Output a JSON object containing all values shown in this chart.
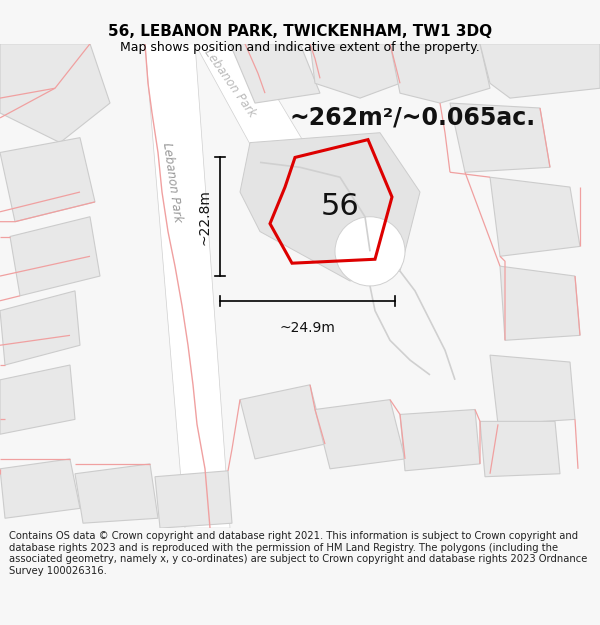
{
  "title": "56, LEBANON PARK, TWICKENHAM, TW1 3DQ",
  "subtitle": "Map shows position and indicative extent of the property.",
  "area_label": "~262m²/~0.065ac.",
  "number_label": "56",
  "dim_width": "~24.9m",
  "dim_height": "~22.8m",
  "street_label_left": "Lebanon Park",
  "street_label_top": "Lebanon Park",
  "footer": "Contains OS data © Crown copyright and database right 2021. This information is subject to Crown copyright and database rights 2023 and is reproduced with the permission of HM Land Registry. The polygons (including the associated geometry, namely x, y co-ordinates) are subject to Crown copyright and database rights 2023 Ordnance Survey 100026316.",
  "bg_color": "#f7f7f7",
  "map_bg": "#efefef",
  "road_color": "#ffffff",
  "building_fill": "#e8e8e8",
  "building_edge": "#cccccc",
  "red_color": "#dd0000",
  "pink_color": "#f0a0a0",
  "gray_road_color": "#d0d0d0",
  "title_fontsize": 11,
  "subtitle_fontsize": 9,
  "area_fontsize": 17,
  "number_fontsize": 22,
  "dim_fontsize": 10,
  "street_fontsize": 8.5,
  "footer_fontsize": 7.2
}
